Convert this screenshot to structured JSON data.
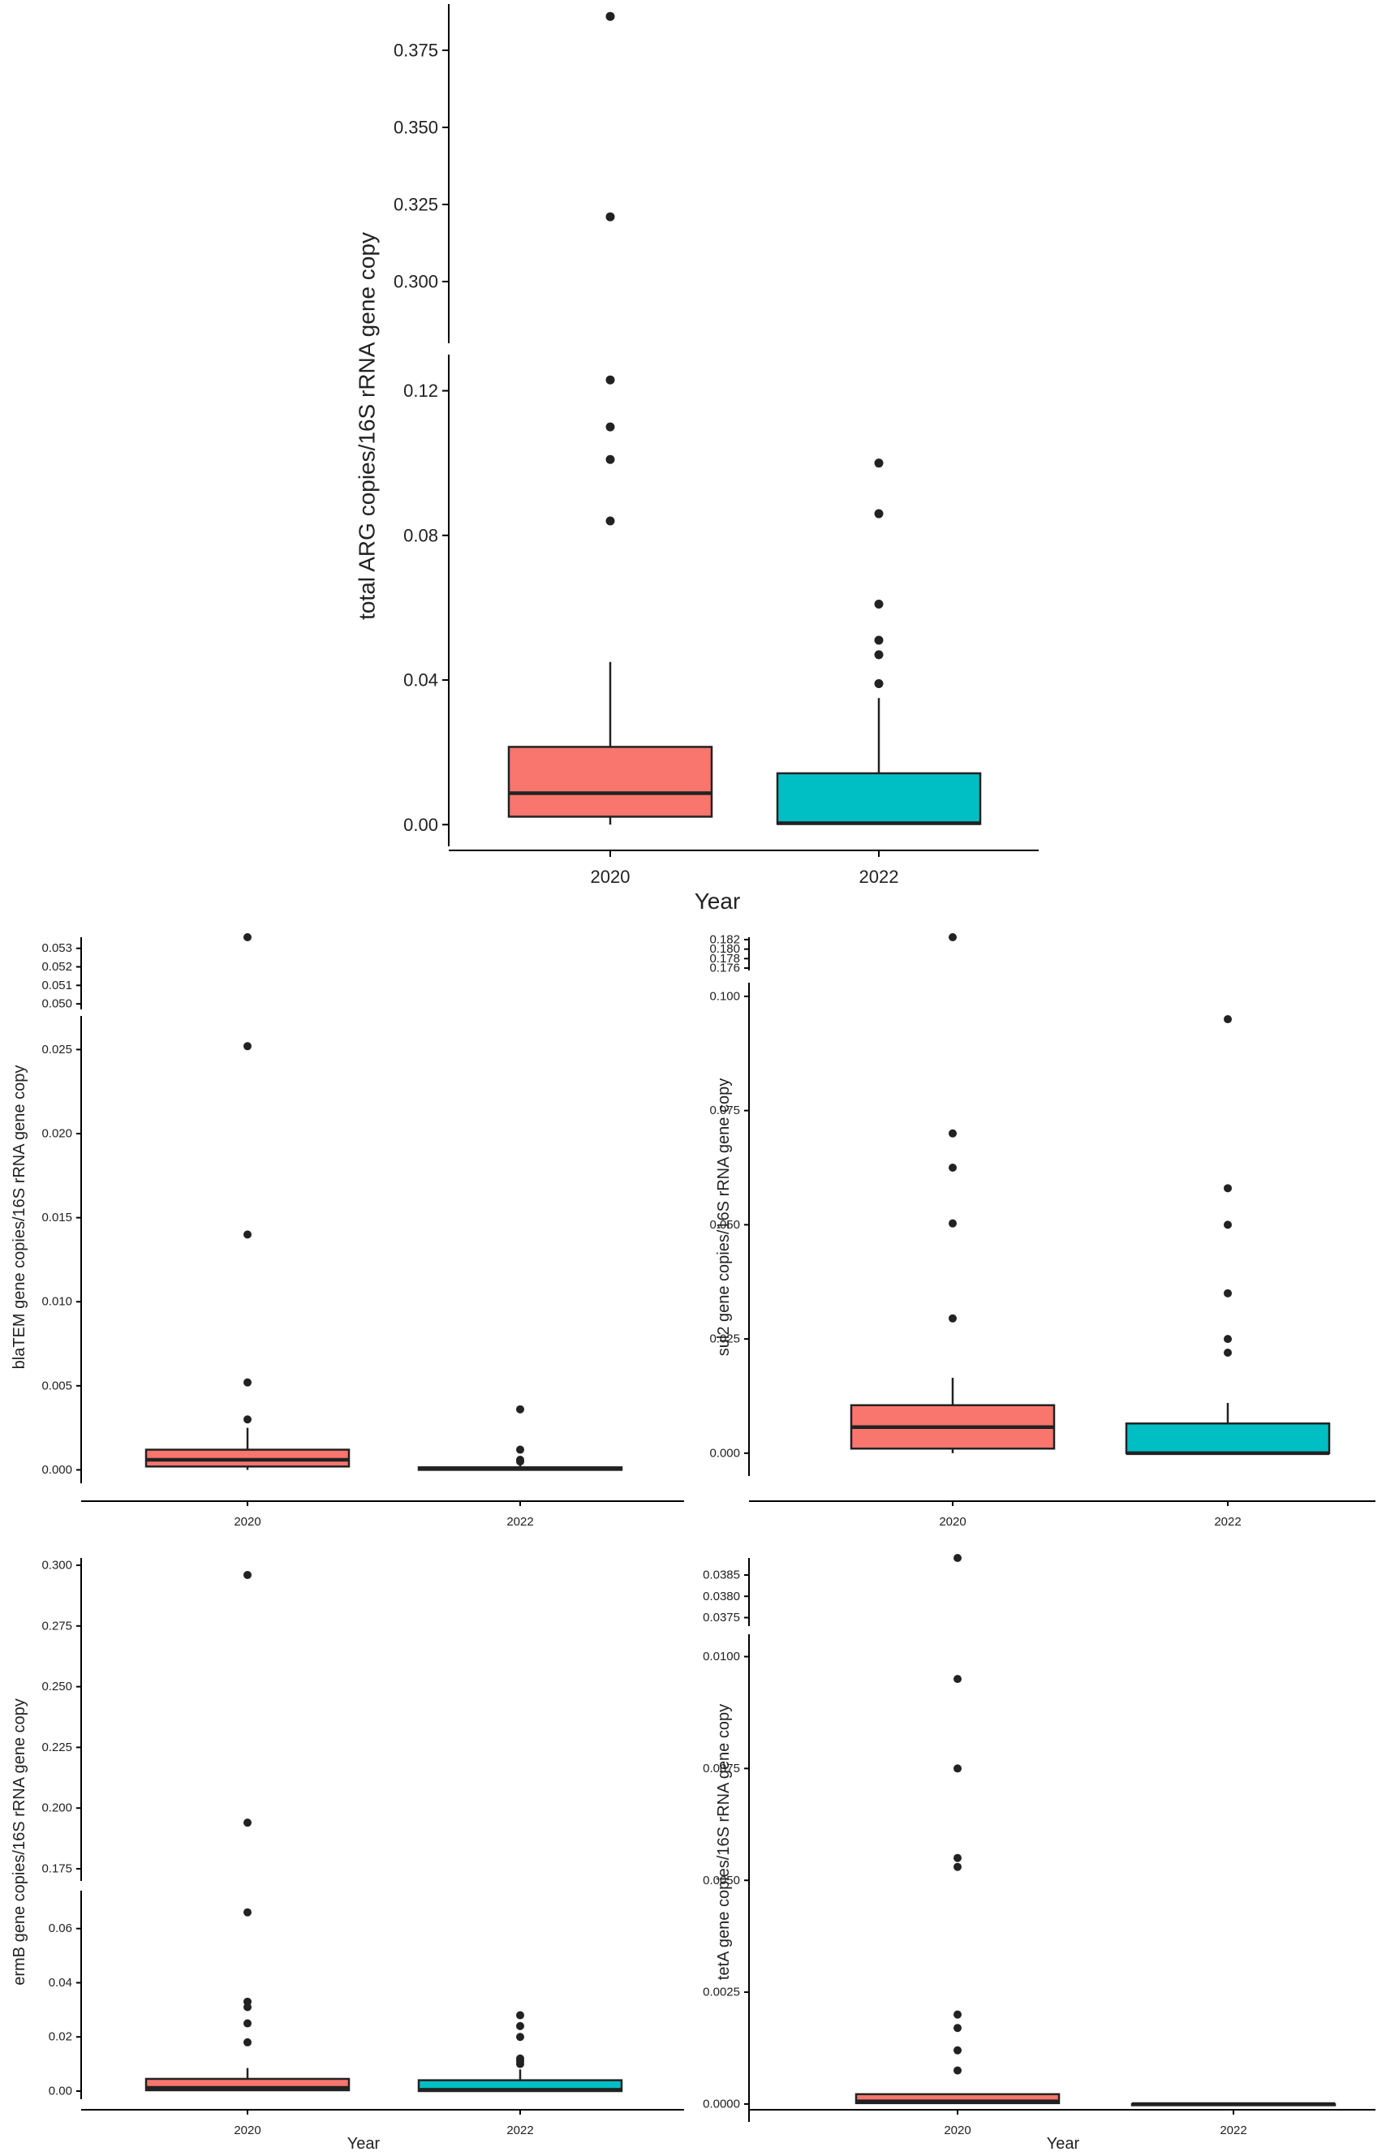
{
  "chart_data": [
    {
      "id": "total-arg",
      "type": "box",
      "xlabel": "Year",
      "ylabel": "total ARG copies/16S rRNA gene copy",
      "categories": [
        "2020",
        "2022"
      ],
      "colors": {
        "2020": "#F8766D",
        "2022": "#00BFC4"
      },
      "axis_breaks": [
        {
          "range": [
            0.28,
            0.39
          ],
          "ticks": [
            "0.300",
            "0.325",
            "0.350",
            "0.375"
          ]
        },
        {
          "range": [
            -0.006,
            0.13
          ],
          "ticks": [
            "0.00",
            "0.04",
            "0.08",
            "0.12"
          ]
        }
      ],
      "boxes": [
        {
          "category": "2020",
          "whisker_low": 0.0,
          "q1": 0.0022,
          "median": 0.0087,
          "q3": 0.0215,
          "whisker_high": 0.045,
          "outliers": [
            0.084,
            0.101,
            0.11,
            0.123,
            0.321,
            0.386
          ]
        },
        {
          "category": "2022",
          "whisker_low": 0.0,
          "q1": 0.0002,
          "median": 0.0004,
          "q3": 0.0142,
          "whisker_high": 0.035,
          "outliers": [
            0.039,
            0.047,
            0.051,
            0.061,
            0.086,
            0.1
          ]
        }
      ]
    },
    {
      "id": "blatem",
      "type": "box",
      "xlabel": "",
      "ylabel": "blaTEM gene copies/16S rRNA gene copy",
      "categories": [
        "2020",
        "2022"
      ],
      "colors": {
        "2020": "#F8766D",
        "2022": "#00BFC4"
      },
      "axis_breaks": [
        {
          "range": [
            0.0497,
            0.0536
          ],
          "ticks": [
            "0.050",
            "0.051",
            "0.052",
            "0.053"
          ]
        },
        {
          "range": [
            -0.0008,
            0.027
          ],
          "ticks": [
            "0.000",
            "0.005",
            "0.010",
            "0.015",
            "0.020",
            "0.025"
          ]
        }
      ],
      "boxes": [
        {
          "category": "2020",
          "whisker_low": 0.0,
          "q1": 0.0002,
          "median": 0.0006,
          "q3": 0.0012,
          "whisker_high": 0.0025,
          "outliers": [
            0.003,
            0.0052,
            0.014,
            0.0252,
            0.0536
          ]
        },
        {
          "category": "2022",
          "whisker_low": 0.0,
          "q1": 0.0,
          "median": 0.0001,
          "q3": 0.00015,
          "whisker_high": 0.0003,
          "outliers": [
            0.0005,
            0.0006,
            0.0012,
            0.0036
          ]
        }
      ]
    },
    {
      "id": "sul2",
      "type": "box",
      "xlabel": "",
      "ylabel": "sul2 gene copies/16S rRNA gene copy",
      "categories": [
        "2020",
        "2022"
      ],
      "colors": {
        "2020": "#F8766D",
        "2022": "#00BFC4"
      },
      "axis_breaks": [
        {
          "range": [
            0.1755,
            0.1825
          ],
          "ticks": [
            "0.176",
            "0.178",
            "0.180",
            "0.182"
          ]
        },
        {
          "range": [
            -0.005,
            0.103
          ],
          "ticks": [
            "0.000",
            "0.025",
            "0.050",
            "0.075",
            "0.100"
          ]
        }
      ],
      "boxes": [
        {
          "category": "2020",
          "whisker_low": 0.0,
          "q1": 0.001,
          "median": 0.0057,
          "q3": 0.0105,
          "whisker_high": 0.0165,
          "outliers": [
            0.0295,
            0.0503,
            0.0625,
            0.07,
            0.1825
          ]
        },
        {
          "category": "2022",
          "whisker_low": 0.0,
          "q1": 0.0,
          "median": 0.0,
          "q3": 0.0065,
          "whisker_high": 0.011,
          "outliers": [
            0.022,
            0.025,
            0.035,
            0.05,
            0.058,
            0.095
          ]
        }
      ]
    },
    {
      "id": "ermb",
      "type": "box",
      "xlabel": "Year",
      "ylabel": "ermB gene copies/16S rRNA gene copy",
      "categories": [
        "2020",
        "2022"
      ],
      "colors": {
        "2020": "#F8766D",
        "2022": "#00BFC4"
      },
      "axis_breaks": [
        {
          "range": [
            0.17,
            0.303
          ],
          "ticks": [
            "0.175",
            "0.200",
            "0.225",
            "0.250",
            "0.275",
            "0.300"
          ]
        },
        {
          "range": [
            -0.003,
            0.074
          ],
          "ticks": [
            "0.00",
            "0.02",
            "0.04",
            "0.06"
          ]
        }
      ],
      "boxes": [
        {
          "category": "2020",
          "whisker_low": 0.0,
          "q1": 0.0003,
          "median": 0.0012,
          "q3": 0.0045,
          "whisker_high": 0.0085,
          "outliers": [
            0.018,
            0.025,
            0.031,
            0.033,
            0.066,
            0.194,
            0.296
          ]
        },
        {
          "category": "2022",
          "whisker_low": 0.0,
          "q1": 0.0,
          "median": 0.0005,
          "q3": 0.004,
          "whisker_high": 0.008,
          "outliers": [
            0.01,
            0.011,
            0.012,
            0.02,
            0.024,
            0.028
          ]
        }
      ]
    },
    {
      "id": "teta",
      "type": "box",
      "xlabel": "Year",
      "ylabel": "tetA gene copies/16S rRNA gene copy",
      "categories": [
        "2020",
        "2022"
      ],
      "colors": {
        "2020": "#F8766D",
        "2022": "#00BFC4"
      },
      "axis_breaks": [
        {
          "range": [
            0.0373,
            0.0389
          ],
          "ticks": [
            "0.0375",
            "0.0380",
            "0.0385"
          ]
        },
        {
          "range": [
            -0.0004,
            0.0105
          ],
          "ticks": [
            "0.0000",
            "0.0025",
            "0.0050",
            "0.0075",
            "0.0100"
          ]
        }
      ],
      "boxes": [
        {
          "category": "2020",
          "whisker_low": 0.0,
          "q1": 2e-05,
          "median": 6e-05,
          "q3": 0.00022,
          "whisker_high": 0.00022,
          "outliers": [
            0.00075,
            0.0012,
            0.0017,
            0.002,
            0.0053,
            0.0055,
            0.0075,
            0.0095,
            0.0389
          ]
        },
        {
          "category": "2022",
          "whisker_low": 0.0,
          "q1": 0.0,
          "median": 0.0,
          "q3": 0.0,
          "whisker_high": 0.0,
          "outliers": []
        }
      ]
    }
  ]
}
